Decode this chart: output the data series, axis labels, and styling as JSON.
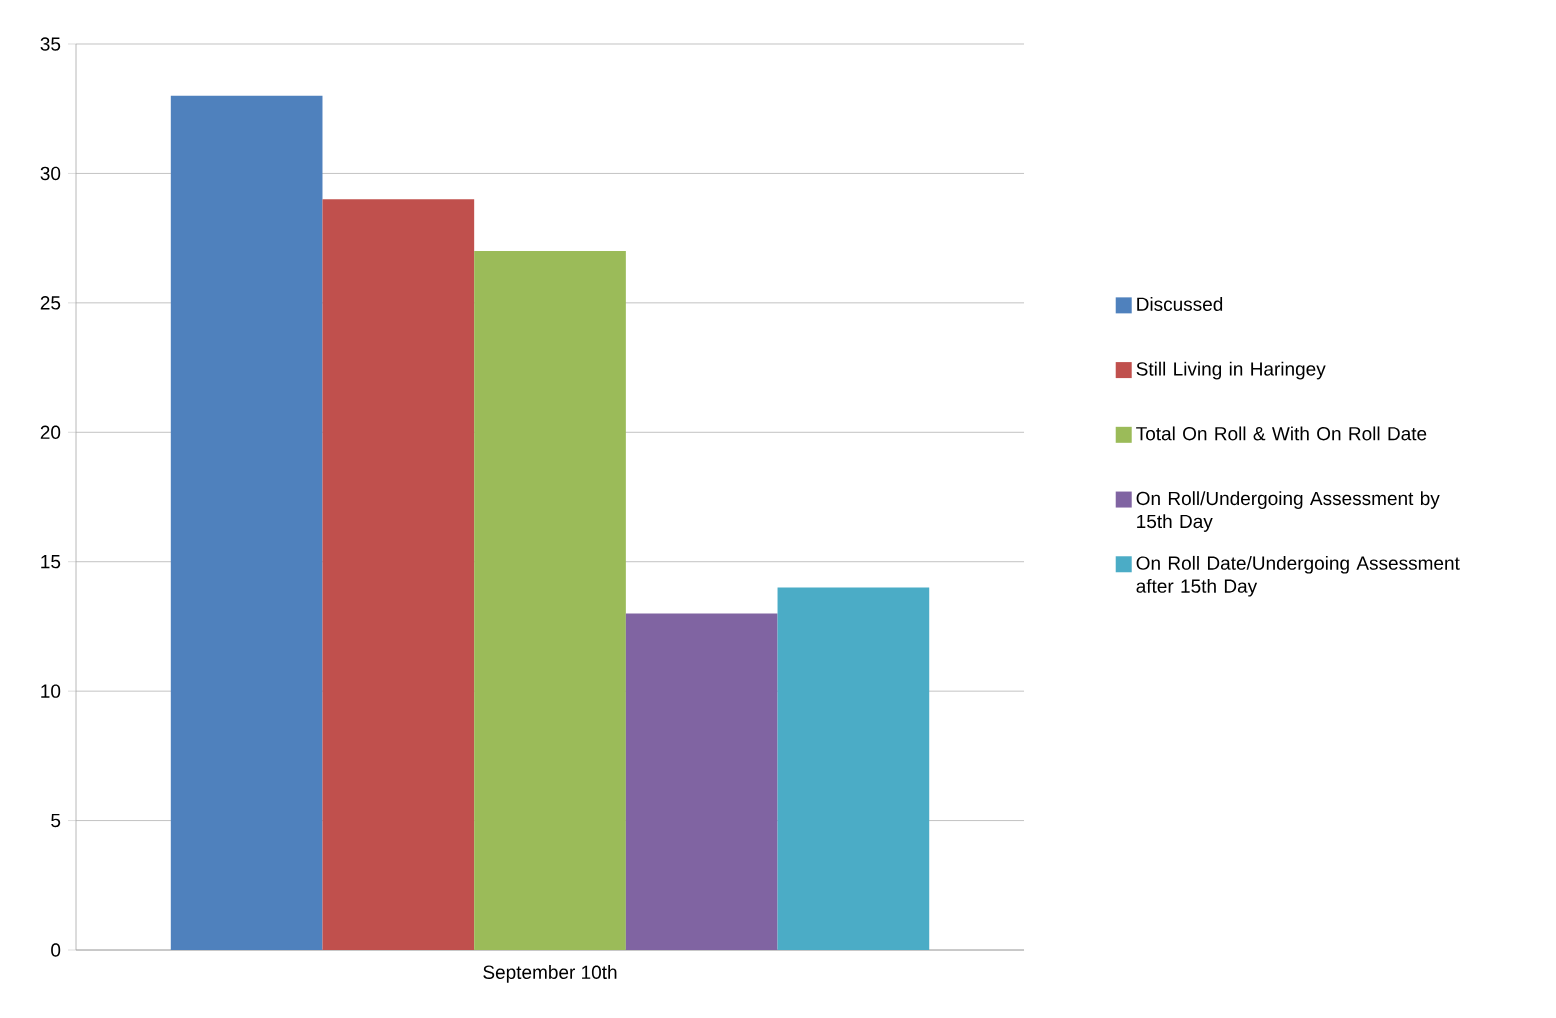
{
  "chart_data": {
    "type": "bar",
    "categories": [
      "September 10th"
    ],
    "series": [
      {
        "name": "Discussed",
        "color": "#4f81bd",
        "values": [
          33
        ]
      },
      {
        "name": "Still Living in Haringey",
        "color": "#c0504d",
        "values": [
          29
        ]
      },
      {
        "name": "Total On Roll & With On Roll Date",
        "color": "#9bbb59",
        "values": [
          27
        ]
      },
      {
        "name": "On Roll/Undergoing Assessment by 15th Day",
        "color": "#8064a2",
        "values": [
          13
        ]
      },
      {
        "name": "On Roll Date/Undergoing Assessment after 15th Day",
        "color": "#4bacc6",
        "values": [
          14
        ]
      }
    ],
    "ylim": [
      0,
      35
    ],
    "yticks": [
      0,
      5,
      10,
      15,
      20,
      25,
      30,
      35
    ],
    "grid": "y",
    "legend": "right"
  }
}
